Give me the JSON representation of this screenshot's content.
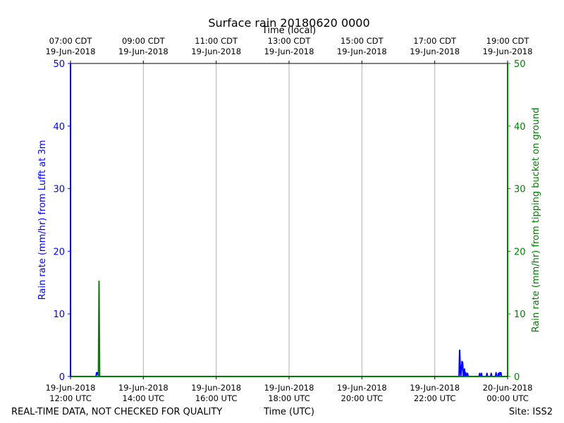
{
  "chart_data": {
    "type": "line",
    "title": "Surface rain 20180620 0000",
    "top_axis_label": "Time (local)",
    "xlabel": "Time (UTC)",
    "ylabel_left": "Rain rate (mm/hr) from Lufft at 3m",
    "ylabel_right": "Rain rate (mm/hr) from tipping bucket on ground",
    "footer_left": "REAL-TIME DATA, NOT CHECKED FOR QUALITY",
    "footer_right": "Site: ISS2",
    "xlim": [
      "2018-06-19T12:00",
      "2018-06-20T00:00"
    ],
    "ylim": [
      0,
      50
    ],
    "y_ticks": [
      "0",
      "10",
      "20",
      "30",
      "40",
      "50"
    ],
    "grid": "vertical",
    "bottom_ticks": [
      {
        "time": "2018-06-19T12:00",
        "date": "19-Jun-2018",
        "label": "12:00 UTC"
      },
      {
        "time": "2018-06-19T14:00",
        "date": "19-Jun-2018",
        "label": "14:00 UTC"
      },
      {
        "time": "2018-06-19T16:00",
        "date": "19-Jun-2018",
        "label": "16:00 UTC"
      },
      {
        "time": "2018-06-19T18:00",
        "date": "19-Jun-2018",
        "label": "18:00 UTC"
      },
      {
        "time": "2018-06-19T20:00",
        "date": "19-Jun-2018",
        "label": "20:00 UTC"
      },
      {
        "time": "2018-06-19T22:00",
        "date": "19-Jun-2018",
        "label": "22:00 UTC"
      },
      {
        "time": "2018-06-20T00:00",
        "date": "20-Jun-2018",
        "label": "00:00 UTC"
      }
    ],
    "top_ticks": [
      {
        "time": "2018-06-19T12:00",
        "label": "07:00 CDT",
        "date": "19-Jun-2018"
      },
      {
        "time": "2018-06-19T14:00",
        "label": "09:00 CDT",
        "date": "19-Jun-2018"
      },
      {
        "time": "2018-06-19T16:00",
        "label": "11:00 CDT",
        "date": "19-Jun-2018"
      },
      {
        "time": "2018-06-19T18:00",
        "label": "13:00 CDT",
        "date": "19-Jun-2018"
      },
      {
        "time": "2018-06-19T20:00",
        "label": "15:00 CDT",
        "date": "19-Jun-2018"
      },
      {
        "time": "2018-06-19T22:00",
        "label": "17:00 CDT",
        "date": "19-Jun-2018"
      },
      {
        "time": "2018-06-20T00:00",
        "label": "19:00 CDT",
        "date": "19-Jun-2018"
      }
    ],
    "series": [
      {
        "color": "#0000ff",
        "axis": "left",
        "x": [
          "2018-06-19T12:00",
          "2018-06-19T12:42",
          "2018-06-19T12:43",
          "2018-06-19T12:44",
          "2018-06-19T12:45",
          "2018-06-19T12:46",
          "2018-06-19T12:47",
          "2018-06-19T22:40",
          "2018-06-19T22:41",
          "2018-06-19T22:42",
          "2018-06-19T22:43",
          "2018-06-19T22:44",
          "2018-06-19T22:45",
          "2018-06-19T22:46",
          "2018-06-19T22:47",
          "2018-06-19T22:48",
          "2018-06-19T22:49",
          "2018-06-19T22:50",
          "2018-06-19T22:51",
          "2018-06-19T22:52",
          "2018-06-19T22:53",
          "2018-06-19T22:54",
          "2018-06-19T22:55",
          "2018-06-19T22:56",
          "2018-06-19T22:57",
          "2018-06-19T23:13",
          "2018-06-19T23:14",
          "2018-06-19T23:15",
          "2018-06-19T23:16",
          "2018-06-19T23:17",
          "2018-06-19T23:18",
          "2018-06-19T23:25",
          "2018-06-19T23:26",
          "2018-06-19T23:27",
          "2018-06-19T23:32",
          "2018-06-19T23:33",
          "2018-06-19T23:34",
          "2018-06-19T23:40",
          "2018-06-19T23:41",
          "2018-06-19T23:42",
          "2018-06-19T23:44",
          "2018-06-19T23:45",
          "2018-06-19T23:46",
          "2018-06-19T23:47",
          "2018-06-19T23:48",
          "2018-06-19T23:49",
          "2018-06-19T23:50",
          "2018-06-19T23:51",
          "2018-06-19T23:52",
          "2018-06-20T00:00"
        ],
        "y": [
          0,
          0,
          0.6,
          0.6,
          0.3,
          0.6,
          0,
          0,
          4.2,
          1.5,
          0,
          1.2,
          2.4,
          2.1,
          0,
          0,
          1.2,
          0,
          0.6,
          0,
          0,
          0.5,
          0,
          0,
          0,
          0,
          0.5,
          0,
          0,
          0.5,
          0,
          0,
          0.5,
          0,
          0,
          0.5,
          0,
          0,
          0.6,
          0,
          0,
          0.5,
          0,
          0.6,
          0.3,
          0.6,
          0,
          0,
          0,
          0
        ]
      },
      {
        "color": "#008000",
        "axis": "right",
        "x": [
          "2018-06-19T12:00",
          "2018-06-19T12:46",
          "2018-06-19T12:47",
          "2018-06-19T12:48",
          "2018-06-20T00:00"
        ],
        "y": [
          0,
          0,
          15.2,
          0,
          0
        ]
      }
    ]
  }
}
